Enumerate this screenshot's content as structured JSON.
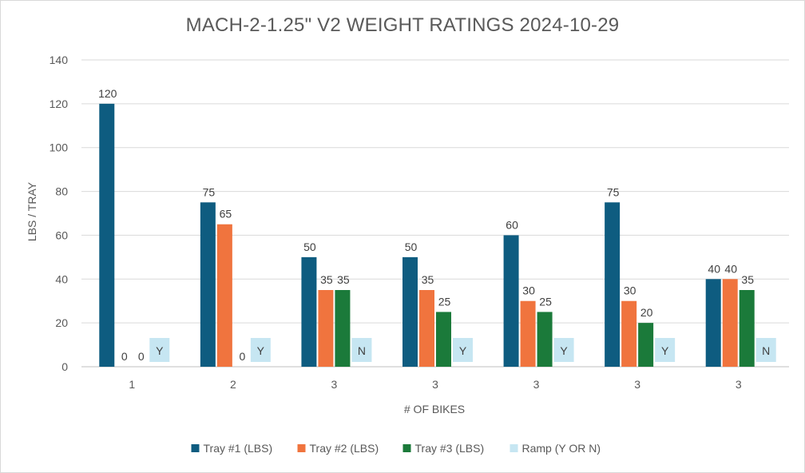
{
  "chart_data": {
    "type": "bar",
    "title": "MACH-2-1.25\" V2 WEIGHT RATINGS 2024-10-29",
    "xlabel": "# OF BIKES",
    "ylabel": "LBS / TRAY",
    "categories": [
      "1",
      "2",
      "3",
      "3",
      "3",
      "3",
      "3"
    ],
    "ylim": [
      0,
      140
    ],
    "yticks": [
      0,
      20,
      40,
      60,
      80,
      100,
      120,
      140
    ],
    "grid": true,
    "legend_position": "bottom",
    "series": [
      {
        "name": "Tray #1 (LBS)",
        "color": "#0e5c80",
        "values": [
          120,
          75,
          50,
          50,
          60,
          75,
          40
        ]
      },
      {
        "name": "Tray #2 (LBS)",
        "color": "#f0743e",
        "values": [
          0,
          65,
          35,
          35,
          30,
          30,
          40
        ]
      },
      {
        "name": "Tray #3 (LBS)",
        "color": "#1b7a3a",
        "values": [
          0,
          0,
          35,
          25,
          25,
          20,
          35
        ]
      },
      {
        "name": "Ramp (Y OR N)",
        "color": "#c6e6f2",
        "values": [
          "Y",
          "Y",
          "N",
          "Y",
          "Y",
          "Y",
          "N"
        ]
      }
    ]
  }
}
